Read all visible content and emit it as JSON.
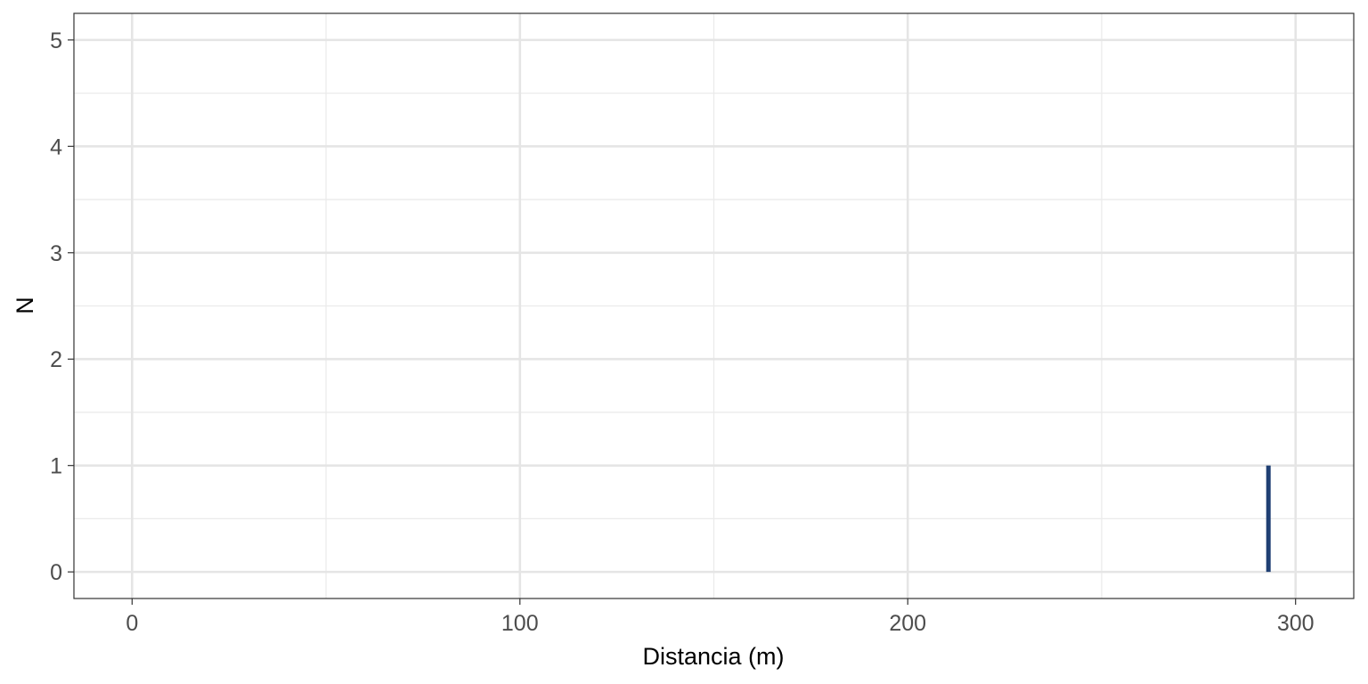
{
  "chart_data": {
    "type": "bar",
    "xlabel": "Distancia (m)",
    "ylabel": "N",
    "xlim": [
      -15,
      315
    ],
    "ylim": [
      -0.25,
      5.25
    ],
    "x_ticks": [
      0,
      100,
      200,
      300
    ],
    "x_minor_ticks": [
      50,
      150,
      250
    ],
    "y_ticks": [
      0,
      1,
      2,
      3,
      4,
      5
    ],
    "y_minor_ticks": [
      0.5,
      1.5,
      2.5,
      3.5,
      4.5
    ],
    "grid": true,
    "bar_color": "#1f3f73",
    "bars": [
      {
        "x": 293,
        "y": 1
      }
    ]
  }
}
